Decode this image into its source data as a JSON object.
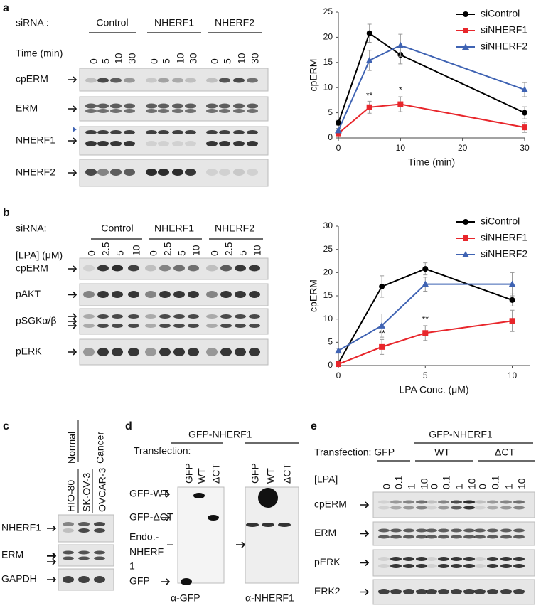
{
  "chart_data": [
    {
      "type": "line",
      "xlabel": "Time (min)",
      "ylabel": "cpERM",
      "x": [
        0,
        5,
        10,
        30
      ],
      "xlim": [
        0,
        30
      ],
      "xticks": [
        0,
        10,
        20,
        30
      ],
      "ylim": [
        0,
        25
      ],
      "yticks": [
        0,
        5,
        10,
        15,
        20,
        25
      ],
      "legend": "upper right",
      "series": [
        {
          "name": "siControl",
          "color": "#000000",
          "marker": "circle",
          "values": [
            3,
            20.8,
            16.5,
            5
          ],
          "errors": [
            0.5,
            1.8,
            1.8,
            1.2
          ]
        },
        {
          "name": "siNHERF1",
          "color": "#e8262b",
          "marker": "square",
          "values": [
            0.9,
            6.1,
            6.7,
            2.1
          ],
          "errors": [
            0.3,
            1.2,
            1.5,
            1
          ]
        },
        {
          "name": "siNHERF2",
          "color": "#3f63b3",
          "marker": "triangle",
          "values": [
            1.5,
            15.4,
            18.4,
            9.6
          ],
          "errors": [
            0.4,
            2,
            2.2,
            1.4
          ]
        }
      ],
      "annotations": [
        {
          "text": "**",
          "x": 5,
          "y": 8.3
        },
        {
          "text": "*",
          "x": 10,
          "y": 9.4
        }
      ]
    },
    {
      "type": "line",
      "xlabel": "LPA Conc. (μM)",
      "ylabel": "cpERM",
      "x": [
        0,
        2.5,
        5,
        10
      ],
      "xlim": [
        0,
        11
      ],
      "xticks": [
        0,
        5,
        10
      ],
      "ylim": [
        0,
        30
      ],
      "yticks": [
        0,
        5,
        10,
        15,
        20,
        25,
        30
      ],
      "legend": "upper right",
      "series": [
        {
          "name": "siControl",
          "color": "#000000",
          "marker": "circle",
          "values": [
            0.5,
            17,
            20.8,
            14.1
          ],
          "errors": [
            0.3,
            2.3,
            1.3,
            1.3
          ]
        },
        {
          "name": "siNHERF1",
          "color": "#e8262b",
          "marker": "square",
          "values": [
            0.3,
            4,
            7,
            9.6
          ],
          "errors": [
            0.3,
            1.6,
            1.6,
            2.3
          ]
        },
        {
          "name": "siNHERF2",
          "color": "#3f63b3",
          "marker": "triangle",
          "values": [
            3.2,
            8.6,
            17.5,
            17.5
          ],
          "errors": [
            0.5,
            2.5,
            1.5,
            2.5
          ]
        }
      ],
      "annotations": [
        {
          "text": "**",
          "x": 2.5,
          "y": 6.8
        },
        {
          "text": "**",
          "x": 5,
          "y": 9.8
        }
      ]
    }
  ],
  "panels": {
    "a": {
      "label": "a",
      "sirna": "siRNA :",
      "groups": [
        "Control",
        "NHERF1",
        "NHERF2"
      ],
      "lane_title": "Time (min)",
      "lanes": [
        "0",
        "5",
        "10",
        "30"
      ],
      "rows": [
        "cpERM",
        "ERM",
        "NHERF1",
        "NHERF2"
      ]
    },
    "b": {
      "label": "b",
      "sirna": "siRNA:",
      "groups": [
        "Control",
        "NHERF1",
        "NHERF2"
      ],
      "lane_title": "[LPA] (μM)",
      "lanes": [
        "0",
        "2.5",
        "5",
        "10"
      ],
      "rows": [
        "cpERM",
        "pAKT",
        "pSGKα/β",
        "pERK"
      ]
    },
    "c": {
      "label": "c",
      "headers": [
        "Normal",
        "Cancer"
      ],
      "lanes": [
        "HIO-80",
        "SK-OV-3",
        "OVCAR-3"
      ],
      "rows": [
        "NHERF1",
        "ERM",
        "GAPDH"
      ]
    },
    "d": {
      "label": "d",
      "construct": "GFP-NHERF1",
      "transfection": "Transfection:",
      "lanes": [
        "GFP",
        "WT",
        "ΔCT"
      ],
      "markers": [
        "GFP-WT",
        "GFP-ΔCT",
        "Endo.-",
        "NHERF",
        "1",
        "GFP"
      ],
      "antibodies": [
        "α-GFP",
        "α-NHERF1"
      ]
    },
    "e": {
      "label": "e",
      "construct": "GFP-NHERF1",
      "transfection": "Transfection: GFP",
      "groups": [
        "WT",
        "ΔCT"
      ],
      "lane_title": "[LPA]",
      "lanes": [
        "0",
        "0.1",
        "1",
        "10"
      ],
      "rows": [
        "cpERM",
        "ERM",
        "pERK",
        "ERK2"
      ]
    }
  }
}
